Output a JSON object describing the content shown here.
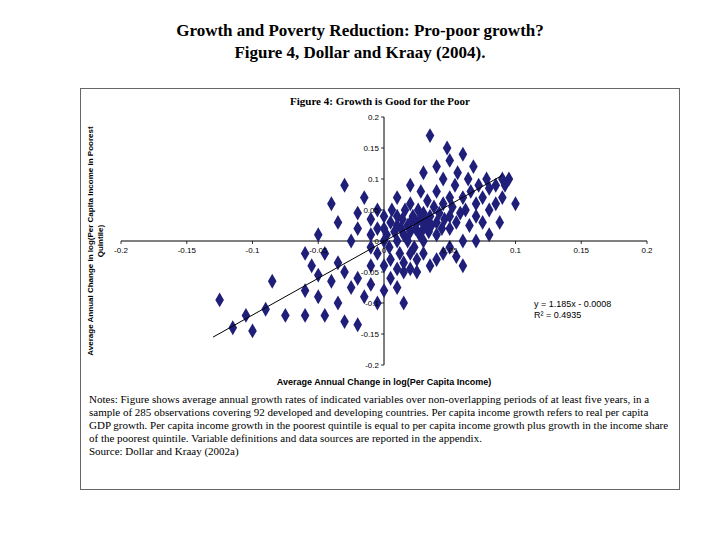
{
  "page_title": [
    "Growth and Poverty Reduction: Pro-poor growth?",
    "Figure 4, Dollar and Kraay (2004)."
  ],
  "chart_data": {
    "type": "scatter",
    "title": "Figure 4:  Growth is Good for the Poor",
    "x_label": "Average Annual Change in log(Per Capita Income)",
    "y_label": "Average Annual Change in log(Per Capita Income in Poorest Quintile)",
    "xlim": [
      -0.2,
      0.2
    ],
    "ylim": [
      -0.2,
      0.2
    ],
    "xticks": [
      -0.2,
      -0.15,
      -0.1,
      -0.05,
      0,
      0.05,
      0.1,
      0.15,
      0.2
    ],
    "yticks": [
      -0.2,
      -0.15,
      -0.1,
      -0.05,
      0,
      0.05,
      0.1,
      0.15,
      0.2
    ],
    "grid": false,
    "color": "#1f1f7a",
    "marker": "diamond",
    "x": [
      -0.125,
      -0.115,
      -0.1,
      -0.105,
      -0.085,
      -0.09,
      -0.075,
      -0.06,
      -0.045,
      -0.05,
      -0.06,
      -0.035,
      -0.03,
      -0.02,
      -0.015,
      -0.04,
      -0.05,
      -0.055,
      -0.06,
      -0.045,
      -0.035,
      -0.03,
      -0.025,
      -0.02,
      -0.01,
      -0.005,
      0.0,
      0.005,
      0.01,
      0.015,
      0.02,
      0.025,
      0.03,
      0.035,
      0.015,
      -0.05,
      -0.04,
      -0.03,
      -0.035,
      -0.025,
      -0.02,
      -0.02,
      -0.015,
      -0.01,
      -0.01,
      -0.01,
      -0.005,
      -0.005,
      -0.005,
      0.0,
      0.0,
      0.0,
      0.002,
      0.004,
      0.005,
      0.006,
      0.008,
      0.01,
      0.01,
      0.01,
      0.01,
      0.012,
      0.013,
      0.014,
      0.015,
      0.016,
      0.018,
      0.018,
      0.02,
      0.02,
      0.02,
      0.02,
      0.022,
      0.023,
      0.024,
      0.025,
      0.026,
      0.027,
      0.028,
      0.028,
      0.03,
      0.03,
      0.03,
      0.03,
      0.032,
      0.033,
      0.034,
      0.035,
      0.035,
      0.036,
      0.038,
      0.04,
      0.04,
      0.04,
      0.04,
      0.042,
      0.044,
      0.045,
      0.045,
      0.046,
      0.048,
      0.05,
      0.05,
      0.05,
      0.05,
      0.052,
      0.054,
      0.055,
      0.056,
      0.058,
      0.06,
      0.06,
      0.06,
      0.062,
      0.064,
      0.065,
      0.066,
      0.068,
      0.07,
      0.07,
      0.072,
      0.075,
      0.075,
      0.078,
      0.08,
      0.08,
      0.085,
      0.085,
      0.088,
      0.09,
      0.09,
      0.092,
      0.095,
      0.1,
      0.045,
      0.05,
      0.055,
      0.06,
      0.04,
      0.025,
      0.07,
      0.08,
      0.005,
      0.01,
      0.0,
      -0.01,
      0.02,
      0.015
    ],
    "y": [
      -0.095,
      -0.14,
      -0.145,
      -0.12,
      -0.065,
      -0.11,
      -0.12,
      -0.12,
      -0.12,
      -0.09,
      -0.08,
      -0.1,
      -0.13,
      -0.135,
      -0.09,
      -0.065,
      -0.055,
      -0.04,
      -0.02,
      -0.02,
      -0.035,
      -0.05,
      -0.075,
      -0.06,
      -0.07,
      -0.1,
      -0.08,
      -0.06,
      -0.075,
      -0.05,
      -0.045,
      -0.03,
      -0.02,
      -0.04,
      -0.1,
      0.01,
      0.06,
      0.09,
      0.03,
      0.0,
      0.02,
      0.045,
      0.07,
      0.01,
      0.035,
      -0.01,
      0.05,
      0.02,
      -0.02,
      0.0,
      0.02,
      0.04,
      0.01,
      -0.01,
      0.03,
      0.05,
      0.015,
      0.0,
      0.025,
      0.04,
      0.07,
      -0.02,
      0.02,
      0.035,
      0.01,
      0.05,
      0.025,
      0.0,
      0.03,
      0.015,
      0.06,
      0.09,
      0.04,
      -0.01,
      0.02,
      0.03,
      0.05,
      0.01,
      0.035,
      0.08,
      0.02,
      0.045,
      0.0,
      0.11,
      0.03,
      0.065,
      0.015,
      0.04,
      0.17,
      0.025,
      0.055,
      0.03,
      0.01,
      0.08,
      0.12,
      0.045,
      0.02,
      0.06,
      0.1,
      0.035,
      0.15,
      0.04,
      0.02,
      0.07,
      0.13,
      0.055,
      0.09,
      0.03,
      0.11,
      0.045,
      0.07,
      0.14,
      0.0,
      0.05,
      0.1,
      0.025,
      0.08,
      0.12,
      0.06,
      0.04,
      0.09,
      0.07,
      0.03,
      0.1,
      0.05,
      0.085,
      0.09,
      0.06,
      0.03,
      0.07,
      0.1,
      0.09,
      0.1,
      0.06,
      -0.02,
      -0.01,
      -0.025,
      -0.04,
      -0.03,
      -0.05,
      0.0,
      0.01,
      -0.03,
      -0.045,
      -0.04,
      -0.04,
      -0.02,
      -0.035
    ],
    "trend_line": {
      "x": [
        -0.13,
        0.09
      ],
      "y": [
        -0.155,
        0.106
      ]
    },
    "annotations": [
      "y = 1.185x - 0.0008",
      "R² = 0.4935"
    ]
  },
  "notes": "Notes:  Figure shows average annual growth rates of indicated variables over non-overlapping periods of at least five years, in a sample of 285 observations covering 92 developed and developing countries.  Per capita income growth refers to real per capita GDP growth.  Per capita income growth in the poorest quintile is equal to per capita income growth plus growth in the income share of the poorest quintile.  Variable definitions and data sources are reported in the appendix.",
  "source": "Source:  Dollar and Kraay (2002a)"
}
